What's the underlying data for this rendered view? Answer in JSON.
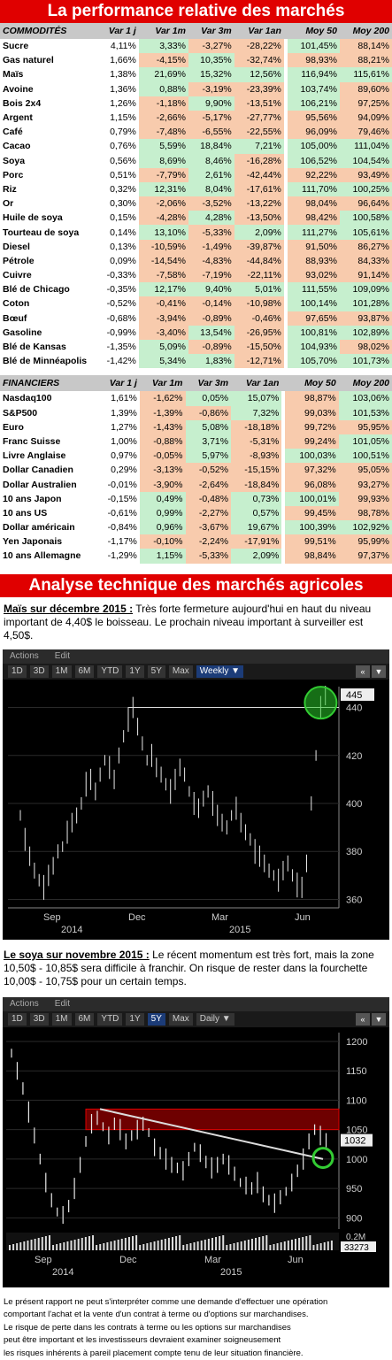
{
  "title_perf": "La performance relative des marchés",
  "headers_comm": [
    "COMMODITÉS",
    "Var 1 j",
    "Var 1m",
    "Var 3m",
    "Var 1an",
    "Moy 50",
    "Moy 200"
  ],
  "commodities": [
    [
      "Sucre",
      "4,11%",
      "3,33%",
      "-3,27%",
      "-28,22%",
      "101,45%",
      "88,14%"
    ],
    [
      "Gas naturel",
      "1,66%",
      "-4,15%",
      "10,35%",
      "-32,74%",
      "98,93%",
      "88,21%"
    ],
    [
      "Maïs",
      "1,38%",
      "21,69%",
      "15,32%",
      "12,56%",
      "116,94%",
      "115,61%"
    ],
    [
      "Avoine",
      "1,36%",
      "0,88%",
      "-3,19%",
      "-23,39%",
      "103,74%",
      "89,60%"
    ],
    [
      "Bois 2x4",
      "1,26%",
      "-1,18%",
      "9,90%",
      "-13,51%",
      "106,21%",
      "97,25%"
    ],
    [
      "Argent",
      "1,15%",
      "-2,66%",
      "-5,17%",
      "-27,77%",
      "95,56%",
      "94,09%"
    ],
    [
      "Café",
      "0,79%",
      "-7,48%",
      "-6,55%",
      "-22,55%",
      "96,09%",
      "79,46%"
    ],
    [
      "Cacao",
      "0,76%",
      "5,59%",
      "18,84%",
      "7,21%",
      "105,00%",
      "111,04%"
    ],
    [
      "Soya",
      "0,56%",
      "8,69%",
      "8,46%",
      "-16,28%",
      "106,52%",
      "104,54%"
    ],
    [
      "Porc",
      "0,51%",
      "-7,79%",
      "2,61%",
      "-42,44%",
      "92,22%",
      "93,49%"
    ],
    [
      "Riz",
      "0,32%",
      "12,31%",
      "8,04%",
      "-17,61%",
      "111,70%",
      "100,25%"
    ],
    [
      "Or",
      "0,30%",
      "-2,06%",
      "-3,52%",
      "-13,22%",
      "98,04%",
      "96,64%"
    ],
    [
      "Huile de soya",
      "0,15%",
      "-4,28%",
      "4,28%",
      "-13,50%",
      "98,42%",
      "100,58%"
    ],
    [
      "Tourteau de soya",
      "0,14%",
      "13,10%",
      "-5,33%",
      "2,09%",
      "111,27%",
      "105,61%"
    ],
    [
      "Diesel",
      "0,13%",
      "-10,59%",
      "-1,49%",
      "-39,87%",
      "91,50%",
      "86,27%"
    ],
    [
      "Pétrole",
      "0,09%",
      "-14,54%",
      "-4,83%",
      "-44,84%",
      "88,93%",
      "84,33%"
    ],
    [
      "Cuivre",
      "-0,33%",
      "-7,58%",
      "-7,19%",
      "-22,11%",
      "93,02%",
      "91,14%"
    ],
    [
      "Blé de Chicago",
      "-0,35%",
      "12,17%",
      "9,40%",
      "5,01%",
      "111,55%",
      "109,09%"
    ],
    [
      "Coton",
      "-0,52%",
      "-0,41%",
      "-0,14%",
      "-10,98%",
      "100,14%",
      "101,28%"
    ],
    [
      "Bœuf",
      "-0,68%",
      "-3,94%",
      "-0,89%",
      "-0,46%",
      "97,65%",
      "93,87%"
    ],
    [
      "Gasoline",
      "-0,99%",
      "-3,40%",
      "13,54%",
      "-26,95%",
      "100,81%",
      "102,89%"
    ],
    [
      "Blé de Kansas",
      "-1,35%",
      "5,09%",
      "-0,89%",
      "-15,50%",
      "104,93%",
      "98,02%"
    ],
    [
      "Blé de Minnéapolis",
      "-1,42%",
      "5,34%",
      "1,83%",
      "-12,71%",
      "105,70%",
      "101,73%"
    ]
  ],
  "headers_fin": [
    "FINANCIERS",
    "Var 1 j",
    "Var 1m",
    "Var 3m",
    "Var 1an",
    "Moy 50",
    "Moy 200"
  ],
  "financials": [
    [
      "Nasdaq100",
      "1,61%",
      "-1,62%",
      "0,05%",
      "15,07%",
      "98,87%",
      "103,06%"
    ],
    [
      "S&P500",
      "1,39%",
      "-1,39%",
      "-0,86%",
      "7,32%",
      "99,03%",
      "101,53%"
    ],
    [
      "Euro",
      "1,27%",
      "-1,43%",
      "5,08%",
      "-18,18%",
      "99,72%",
      "95,95%"
    ],
    [
      "Franc Suisse",
      "1,00%",
      "-0,88%",
      "3,71%",
      "-5,31%",
      "99,24%",
      "101,05%"
    ],
    [
      "Livre Anglaise",
      "0,97%",
      "-0,05%",
      "5,97%",
      "-8,93%",
      "100,03%",
      "100,51%"
    ],
    [
      "Dollar Canadien",
      "0,29%",
      "-3,13%",
      "-0,52%",
      "-15,15%",
      "97,32%",
      "95,05%"
    ],
    [
      "Dollar Australien",
      "-0,01%",
      "-3,90%",
      "-2,64%",
      "-18,84%",
      "96,08%",
      "93,27%"
    ],
    [
      "10 ans Japon",
      "-0,15%",
      "0,49%",
      "-0,48%",
      "0,73%",
      "100,01%",
      "99,93%"
    ],
    [
      "10 ans US",
      "-0,61%",
      "0,99%",
      "-2,27%",
      "0,57%",
      "99,45%",
      "98,78%"
    ],
    [
      "Dollar américain",
      "-0,84%",
      "0,96%",
      "-3,67%",
      "19,67%",
      "100,39%",
      "102,92%"
    ],
    [
      "Yen Japonais",
      "-1,17%",
      "-0,10%",
      "-2,24%",
      "-17,91%",
      "99,51%",
      "95,99%"
    ],
    [
      "10 ans Allemagne",
      "-1,29%",
      "1,15%",
      "-5,33%",
      "2,09%",
      "98,84%",
      "97,37%"
    ]
  ],
  "title_analysis": "Analyse technique des marchés agricoles",
  "mais_lead": "Maïs sur décembre 2015 :",
  "mais_text": " Très forte fermeture aujourd'hui en haut du niveau important de 4,40$ le boisseau. Le prochain niveau important à surveiller est 4,50$.",
  "soya_lead": "Le soya sur novembre 2015 :",
  "soya_text": " Le récent momentum est très fort, mais la zone 10,50$ - 10,85$ sera difficile à franchir. On risque de rester dans la fourchette 10,00$ - 10,75$ pour un certain temps.",
  "toolbar": {
    "actions": "Actions",
    "edit": "Edit"
  },
  "ranges1": [
    "1D",
    "3D",
    "1M",
    "6M",
    "YTD",
    "1Y",
    "5Y",
    "Max",
    "Weekly ▼"
  ],
  "ranges2": [
    "1D",
    "3D",
    "1M",
    "6M",
    "YTD",
    "1Y",
    "5Y",
    "Max",
    "Daily ▼"
  ],
  "nav_glyphs": [
    "«",
    "▼"
  ],
  "chart1": {
    "yticks": [
      "440",
      "420",
      "400",
      "380",
      "360"
    ],
    "last": "445",
    "months": [
      "Sep",
      "Dec",
      "Mar",
      "Jun"
    ],
    "years": [
      "2014",
      "2015"
    ]
  },
  "chart2": {
    "yticks": [
      "1200",
      "1150",
      "1100",
      "1050",
      "1000",
      "950",
      "900"
    ],
    "last": "1032",
    "vol_tick": "0.2M",
    "vol_last": "33273",
    "months": [
      "Sep",
      "Dec",
      "Mar",
      "Jun"
    ],
    "years": [
      "2014",
      "2015"
    ]
  },
  "disclaimer": [
    "Le présent rapport ne peut s'interpréter comme une demande d'effectuer une opération",
    "comportant l'achat et la vente d'un contrat à terme ou d'options sur marchandises.",
    "Le risque de perte dans les contrats à terme ou les options sur marchandises",
    "peut être important et les investisseurs devraient examiner soigneusement",
    "les risques inhérents à pareil placement compte tenu de leur situation financière."
  ],
  "colors": {
    "red": "#e00000",
    "pos": "#c6efce",
    "neg": "#f8cbad",
    "header": "#c8c8c8"
  }
}
